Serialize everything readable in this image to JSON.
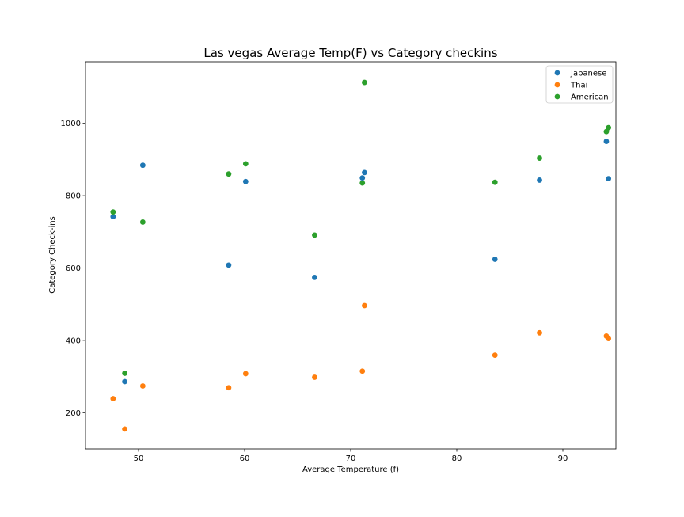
{
  "chart_data": {
    "type": "scatter",
    "title": "Las vegas Average Temp(F) vs Category checkins",
    "xlabel": "Average Temperature (f)",
    "ylabel": "Category Check-ins",
    "xlim": [
      45,
      95
    ],
    "ylim": [
      100,
      1170
    ],
    "xticks": [
      50,
      60,
      70,
      80,
      90
    ],
    "yticks": [
      200,
      400,
      600,
      800,
      1000
    ],
    "grid": false,
    "legend_position": "top-right",
    "series": [
      {
        "name": "Japanese",
        "color": "#1f77b4",
        "points": [
          {
            "x": 47.6,
            "y": 742
          },
          {
            "x": 48.7,
            "y": 286
          },
          {
            "x": 50.4,
            "y": 884
          },
          {
            "x": 58.5,
            "y": 608
          },
          {
            "x": 60.1,
            "y": 839
          },
          {
            "x": 66.6,
            "y": 574
          },
          {
            "x": 71.1,
            "y": 849
          },
          {
            "x": 71.3,
            "y": 864
          },
          {
            "x": 83.6,
            "y": 624
          },
          {
            "x": 87.8,
            "y": 843
          },
          {
            "x": 94.1,
            "y": 950
          },
          {
            "x": 94.3,
            "y": 847
          }
        ]
      },
      {
        "name": "Thai",
        "color": "#ff7f0e",
        "points": [
          {
            "x": 47.6,
            "y": 239
          },
          {
            "x": 48.7,
            "y": 155
          },
          {
            "x": 50.4,
            "y": 274
          },
          {
            "x": 58.5,
            "y": 269
          },
          {
            "x": 60.1,
            "y": 308
          },
          {
            "x": 66.6,
            "y": 298
          },
          {
            "x": 71.1,
            "y": 315
          },
          {
            "x": 71.3,
            "y": 496
          },
          {
            "x": 83.6,
            "y": 359
          },
          {
            "x": 87.8,
            "y": 421
          },
          {
            "x": 94.1,
            "y": 412
          },
          {
            "x": 94.3,
            "y": 405
          }
        ]
      },
      {
        "name": "American",
        "color": "#2ca02c",
        "points": [
          {
            "x": 47.6,
            "y": 755
          },
          {
            "x": 48.7,
            "y": 309
          },
          {
            "x": 50.4,
            "y": 727
          },
          {
            "x": 58.5,
            "y": 860
          },
          {
            "x": 60.1,
            "y": 888
          },
          {
            "x": 66.6,
            "y": 691
          },
          {
            "x": 71.1,
            "y": 835
          },
          {
            "x": 71.3,
            "y": 1113
          },
          {
            "x": 83.6,
            "y": 837
          },
          {
            "x": 87.8,
            "y": 904
          },
          {
            "x": 94.1,
            "y": 977
          },
          {
            "x": 94.3,
            "y": 988
          }
        ]
      }
    ]
  }
}
